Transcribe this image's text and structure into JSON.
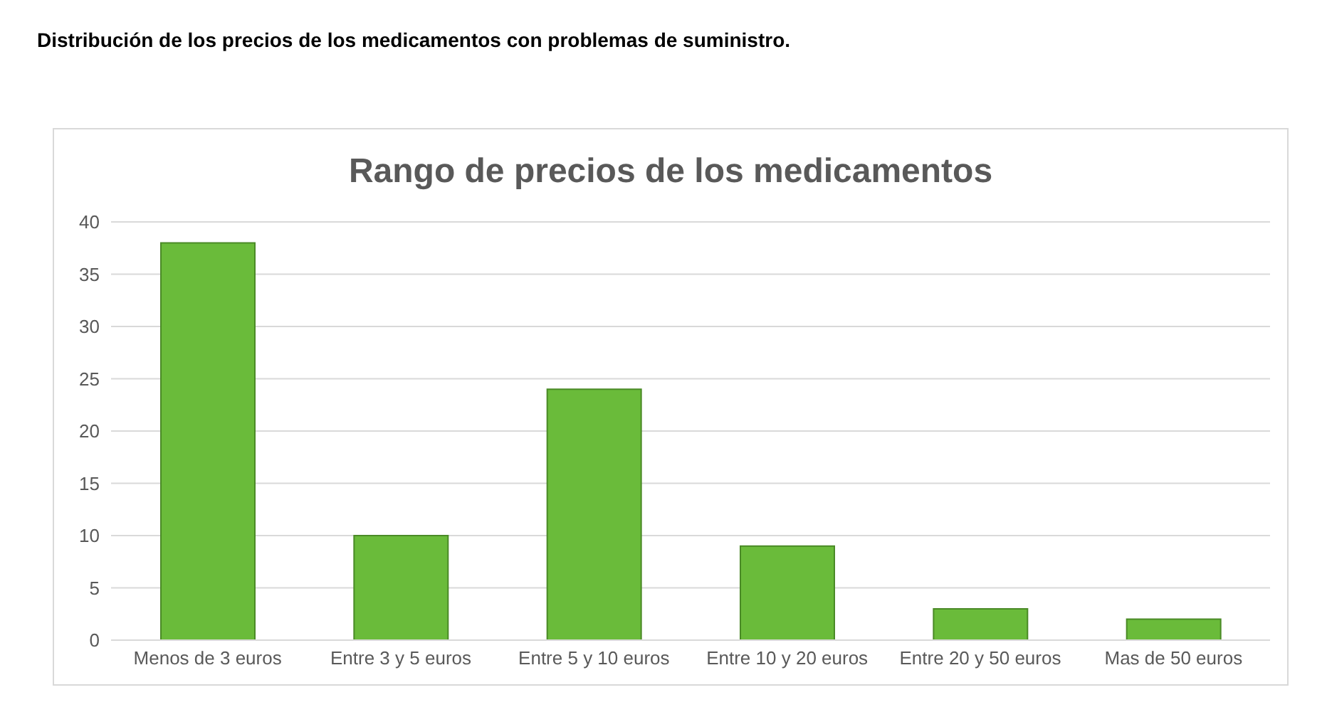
{
  "chart_data": {
    "type": "bar",
    "title": "Distribución de los precios de los medicamentos con problemas de suministro.",
    "subtitle": "Rango de precios de los medicamentos",
    "categories": [
      "Menos de 3 euros",
      "Entre 3 y 5 euros",
      "Entre 5 y 10 euros",
      "Entre 10 y 20 euros",
      "Entre 20 y 50 euros",
      "Mas de 50 euros"
    ],
    "values": [
      38,
      10,
      24,
      9,
      3,
      2
    ],
    "color": "#6abb3a",
    "ylim": [
      0,
      40
    ],
    "yticks": [
      0,
      5,
      10,
      15,
      20,
      25,
      30,
      35,
      40
    ],
    "grid": "y",
    "legend": false
  }
}
